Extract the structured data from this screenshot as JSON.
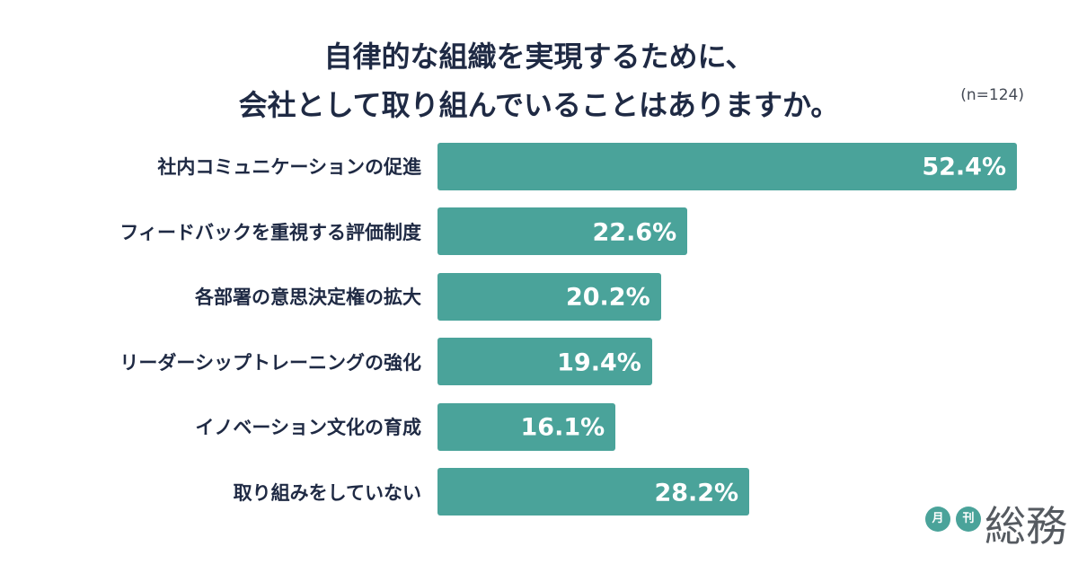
{
  "header": {
    "title_line1": "自律的な組織を実現するために、",
    "title_line2": "会社として取り組んでいることはありますか。",
    "sample_size": "(n=124)"
  },
  "chart_data": {
    "type": "bar",
    "orientation": "horizontal",
    "title": "自律的な組織を実現するために、会社として取り組んでいることはありますか。",
    "categories": [
      "社内コミュニケーションの促進",
      "フィードバックを重視する評価制度",
      "各部署の意思決定権の拡大",
      "リーダーシップトレーニングの強化",
      "イノベーション文化の育成",
      "取り組みをしていない"
    ],
    "values": [
      52.4,
      22.6,
      20.2,
      19.4,
      16.1,
      28.2
    ],
    "value_labels": [
      "52.4%",
      "22.6%",
      "20.2%",
      "19.4%",
      "16.1%",
      "28.2%"
    ],
    "xlim": [
      0,
      52.4
    ],
    "grid": false,
    "bar_color": "#4aa39a"
  },
  "logo": {
    "small1": "月",
    "small2": "刊",
    "main": "総務"
  }
}
